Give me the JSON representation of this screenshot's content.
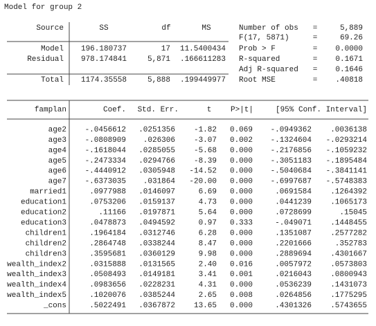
{
  "title": "Model for group 2",
  "anova": {
    "header": [
      "Source",
      "SS",
      "df",
      "MS"
    ],
    "rows": [
      [
        "Model",
        "196.180737",
        "17",
        "11.5400434"
      ],
      [
        "Residual",
        "978.174841",
        "5,871",
        ".166611283"
      ],
      [
        "Total",
        "1174.35558",
        "5,888",
        ".199449977"
      ]
    ]
  },
  "stats": [
    [
      "Number of obs",
      "=",
      "5,889"
    ],
    [
      "F(17, 5871)",
      "=",
      "69.26"
    ],
    [
      "Prob > F",
      "=",
      "0.0000"
    ],
    [
      "R-squared",
      "=",
      "0.1671"
    ],
    [
      "Adj R-squared",
      "=",
      "0.1646"
    ],
    [
      "Root MSE",
      "=",
      ".40818"
    ]
  ],
  "coef_table": {
    "header": [
      "famplan",
      "Coef.",
      "Std. Err.",
      "t",
      "P>|t|",
      "[95% Conf. Interval]"
    ],
    "rows": [
      [
        "age2",
        "-.0456612",
        ".0251356",
        "-1.82",
        "0.069",
        "-.0949362",
        ".0036138"
      ],
      [
        "age3",
        "-.0808909",
        ".026306",
        "-3.07",
        "0.002",
        "-.1324604",
        "-.0293214"
      ],
      [
        "age4",
        "-.1618044",
        ".0285055",
        "-5.68",
        "0.000",
        "-.2176856",
        "-.1059232"
      ],
      [
        "age5",
        "-.2473334",
        ".0294766",
        "-8.39",
        "0.000",
        "-.3051183",
        "-.1895484"
      ],
      [
        "age6",
        "-.4440912",
        ".0305948",
        "-14.52",
        "0.000",
        "-.5040684",
        "-.3841141"
      ],
      [
        "age7",
        "-.6373035",
        ".031864",
        "-20.00",
        "0.000",
        "-.6997687",
        "-.5748383"
      ],
      [
        "married1",
        ".0977988",
        ".0146097",
        "6.69",
        "0.000",
        ".0691584",
        ".1264392"
      ],
      [
        "education1",
        ".0753206",
        ".0159137",
        "4.73",
        "0.000",
        ".0441239",
        ".1065173"
      ],
      [
        "education2",
        ".11166",
        ".0197871",
        "5.64",
        "0.000",
        ".0728699",
        ".15045"
      ],
      [
        "education3",
        ".0478873",
        ".0494592",
        "0.97",
        "0.333",
        "-.049071",
        ".1448455"
      ],
      [
        "children1",
        ".1964184",
        ".0312746",
        "6.28",
        "0.000",
        ".1351087",
        ".2577282"
      ],
      [
        "children2",
        ".2864748",
        ".0338244",
        "8.47",
        "0.000",
        ".2201666",
        ".352783"
      ],
      [
        "children3",
        ".3595681",
        ".0360129",
        "9.98",
        "0.000",
        ".2889694",
        ".4301667"
      ],
      [
        "wealth_index2",
        ".0315888",
        ".0131565",
        "2.40",
        "0.016",
        ".0057972",
        ".0573803"
      ],
      [
        "wealth_index3",
        ".0508493",
        ".0149181",
        "3.41",
        "0.001",
        ".0216043",
        ".0800943"
      ],
      [
        "wealth_index4",
        ".0983656",
        ".0228231",
        "4.31",
        "0.000",
        ".0536239",
        ".1431073"
      ],
      [
        "wealth_index5",
        ".1020076",
        ".0385244",
        "2.65",
        "0.008",
        ".0264856",
        ".1775295"
      ],
      [
        "_cons",
        ".5022491",
        ".0367872",
        "13.65",
        "0.000",
        ".4301326",
        ".5743655"
      ]
    ]
  }
}
